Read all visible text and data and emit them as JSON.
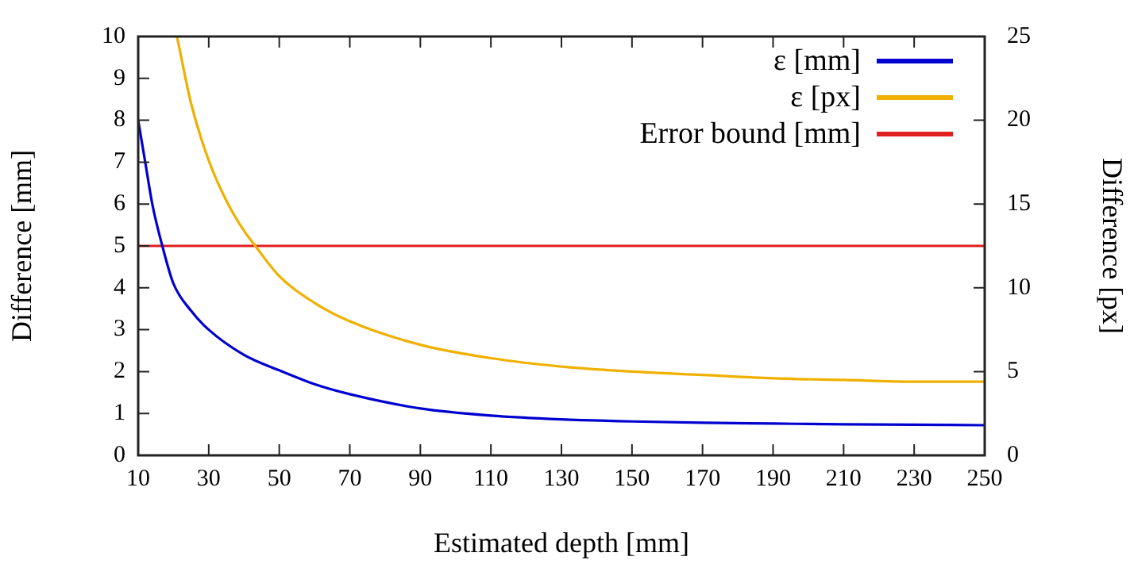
{
  "chart_data": {
    "type": "line",
    "xlabel": "Estimated depth [mm]",
    "ylabel": "Difference [mm]",
    "y2label": "Difference [px]",
    "xlim": [
      10,
      250
    ],
    "xticks": [
      10,
      30,
      50,
      70,
      90,
      110,
      130,
      150,
      170,
      190,
      210,
      230,
      250
    ],
    "ylim": [
      0,
      10
    ],
    "yticks": [
      0,
      1,
      2,
      3,
      4,
      5,
      6,
      7,
      8,
      9,
      10
    ],
    "y2lim": [
      0,
      25
    ],
    "y2ticks": [
      0,
      5,
      10,
      15,
      20,
      25
    ],
    "grid": false,
    "legend": "top right",
    "marker": "none",
    "line_style": "solid",
    "series": [
      {
        "name": "ε [mm]",
        "color": "#0000d0",
        "x": [
          10,
          12,
          14,
          17,
          20,
          25,
          30,
          40,
          50,
          60,
          70,
          90,
          110,
          130,
          150,
          170,
          190,
          210,
          230,
          250
        ],
        "values": [
          8.0,
          7.0,
          6.0,
          4.95,
          4.1,
          3.45,
          3.0,
          2.4,
          2.03,
          1.7,
          1.46,
          1.12,
          0.95,
          0.86,
          0.81,
          0.78,
          0.76,
          0.74,
          0.73,
          0.72
        ]
      },
      {
        "name": "ε [px]",
        "color": "#f0b000",
        "axis": "y2",
        "x": [
          21,
          25,
          30,
          35,
          40,
          43.2,
          50,
          60,
          70,
          90,
          110,
          130,
          150,
          170,
          190,
          210,
          230,
          250
        ],
        "values": [
          25,
          21,
          17.6,
          15.2,
          13.4,
          12.5,
          10.7,
          9.1,
          8.0,
          6.6,
          5.8,
          5.3,
          5.0,
          4.8,
          4.6,
          4.5,
          4.4,
          4.4
        ]
      },
      {
        "name": "Error bound [mm]",
        "color": "#e02020",
        "x": [
          10,
          250
        ],
        "values": [
          5,
          5
        ]
      }
    ]
  }
}
